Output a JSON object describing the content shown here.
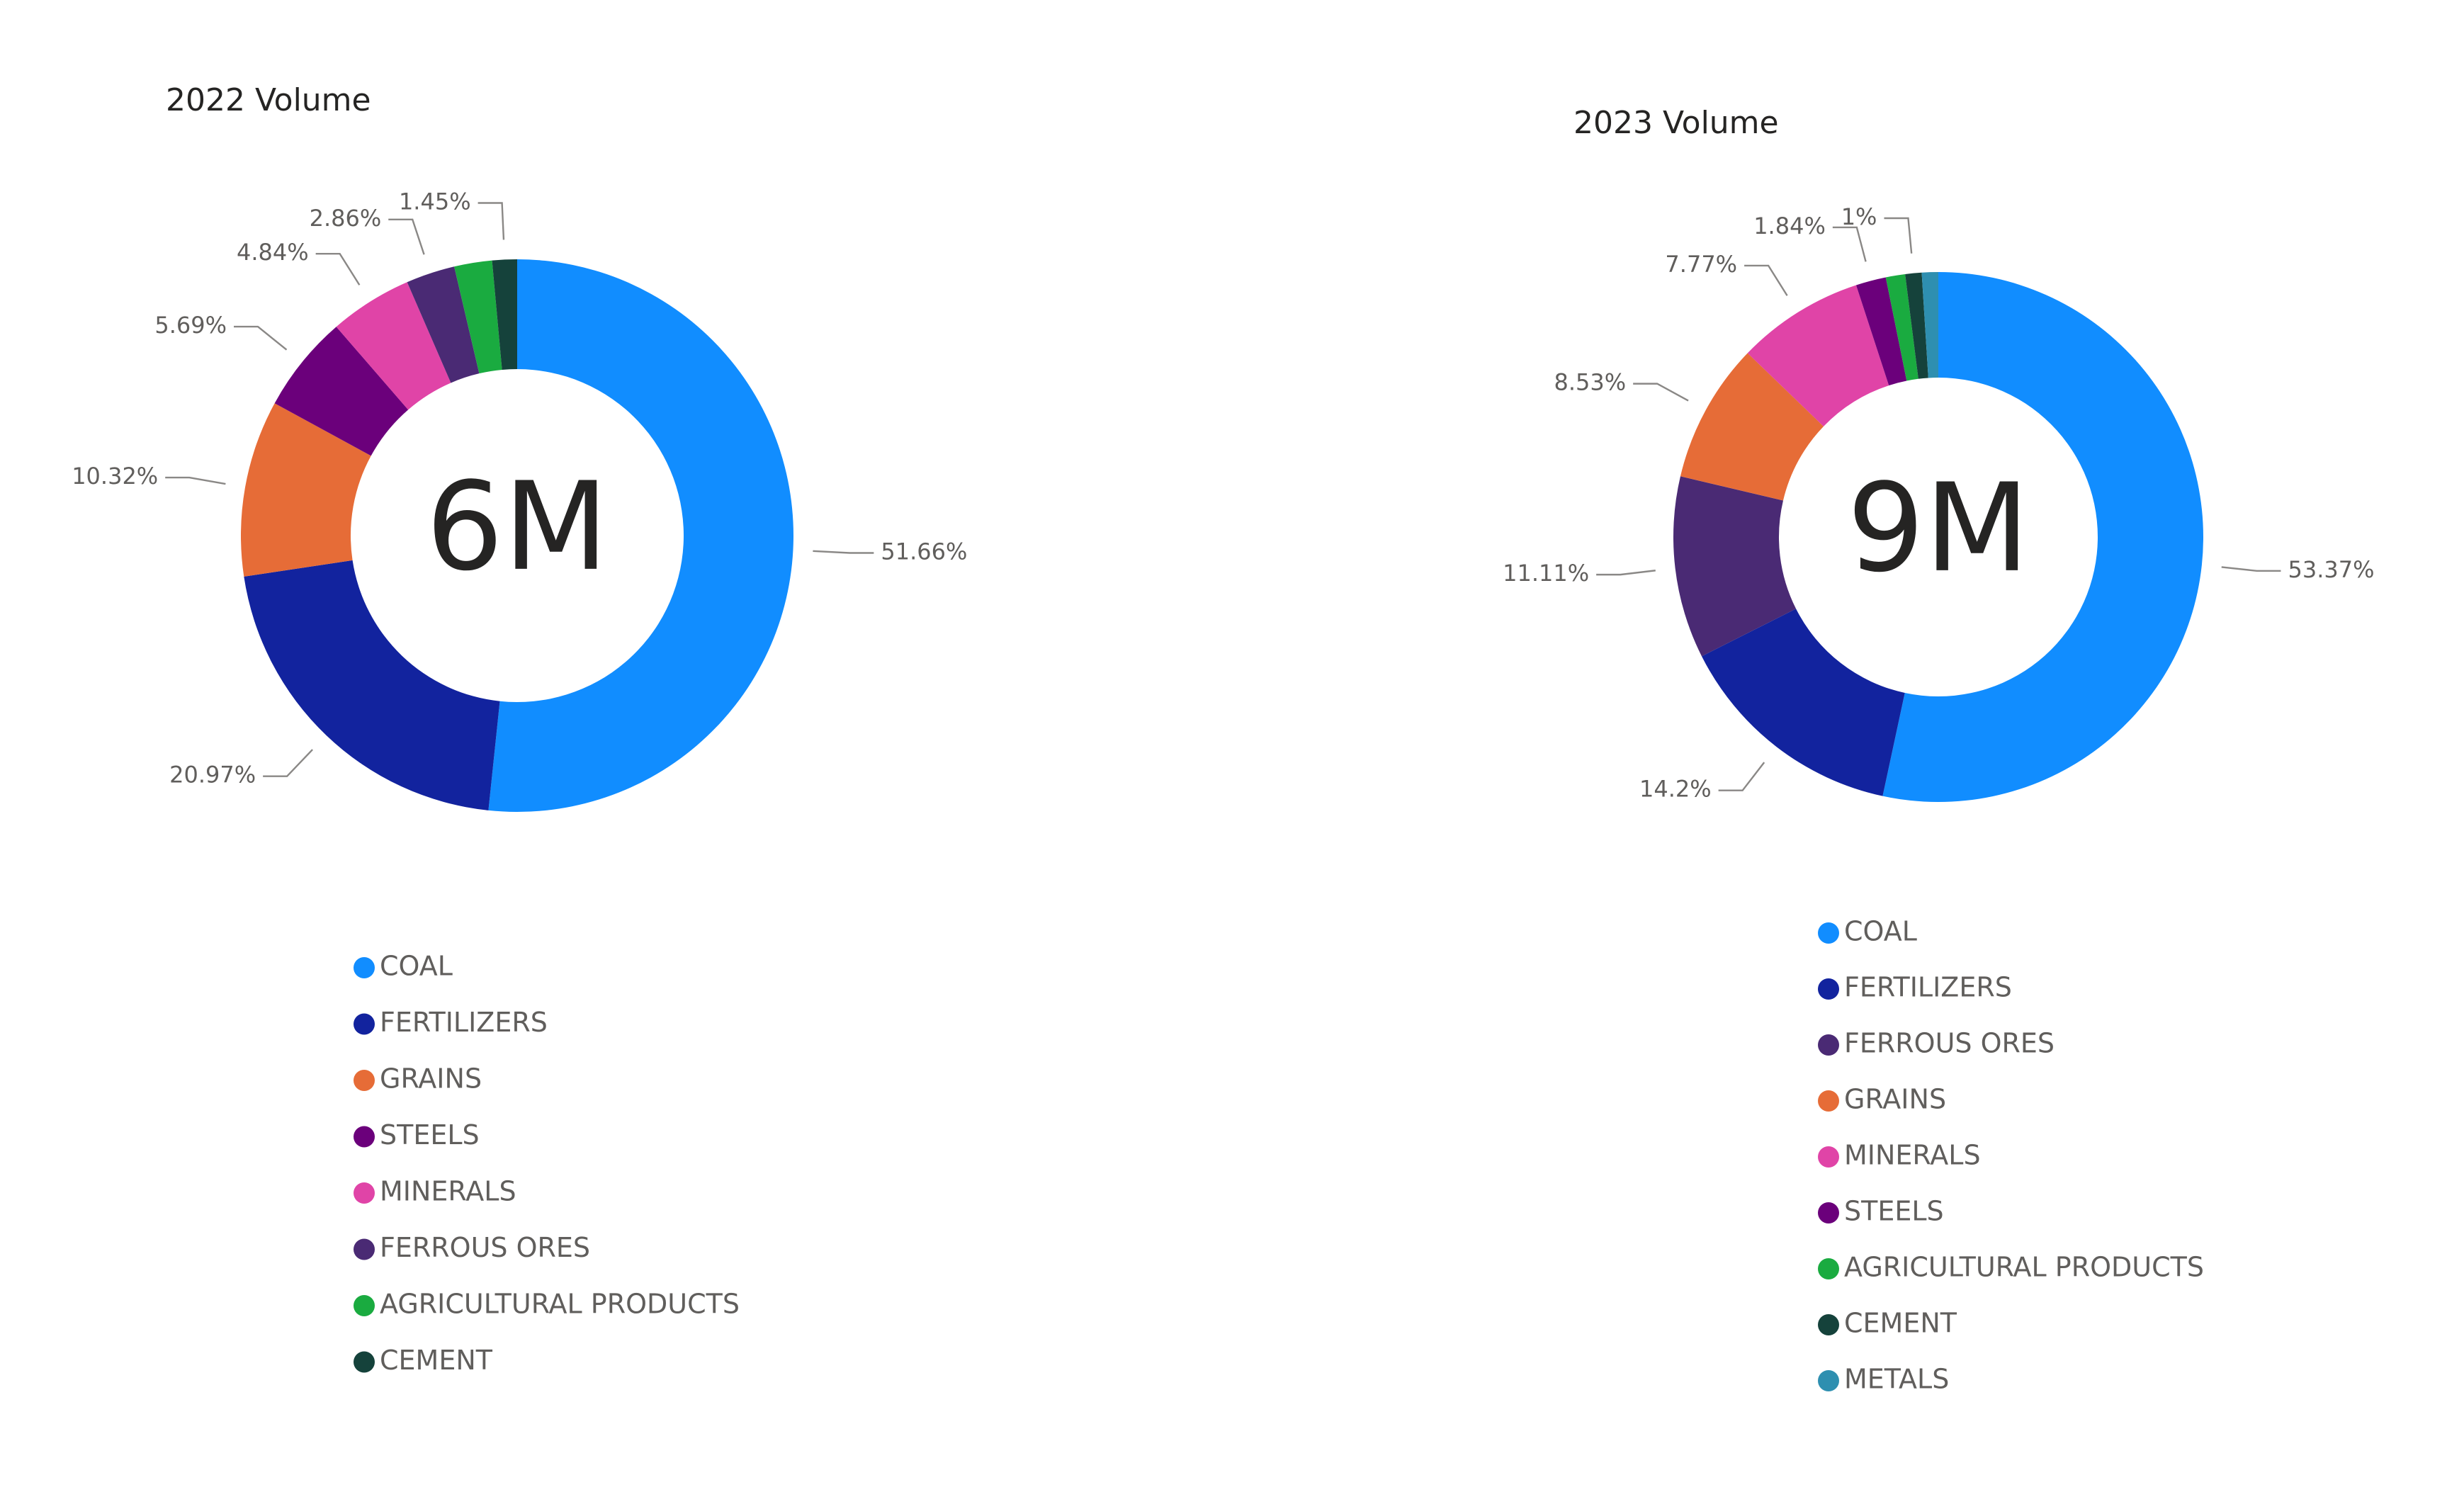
{
  "chart_data": [
    {
      "type": "donut",
      "title": "2022 Volume",
      "center_label": "6M",
      "categories": [
        "COAL",
        "FERTILIZERS",
        "GRAINS",
        "STEELS",
        "MINERALS",
        "FERROUS ORES",
        "AGRICULTURAL PRODUCTS",
        "CEMENT"
      ],
      "values": [
        51.66,
        20.97,
        10.32,
        5.69,
        4.84,
        2.86,
        2.21,
        1.45
      ],
      "data_labels": [
        "51.66%",
        "20.97%",
        "10.32%",
        "5.69%",
        "4.84%",
        "2.86%",
        "",
        "1.45%"
      ],
      "colors": [
        "#118DFF",
        "#12239E",
        "#E66C37",
        "#6B007B",
        "#E044A7",
        "#4A2A74",
        "#1AAB40",
        "#15423B"
      ],
      "legend": [
        "COAL",
        "FERTILIZERS",
        "GRAINS",
        "STEELS",
        "MINERALS",
        "FERROUS ORES",
        "AGRICULTURAL PRODUCTS",
        "CEMENT"
      ],
      "legend_colors": [
        "#118DFF",
        "#12239E",
        "#E66C37",
        "#6B007B",
        "#E044A7",
        "#4A2A74",
        "#1AAB40",
        "#15423B"
      ],
      "legend_position": "bottom"
    },
    {
      "type": "donut",
      "title": "2023 Volume",
      "center_label": "9M",
      "categories": [
        "COAL",
        "FERTILIZERS",
        "FERROUS ORES",
        "GRAINS",
        "MINERALS",
        "STEELS",
        "AGRICULTURAL PRODUCTS",
        "CEMENT",
        "METALS"
      ],
      "values": [
        53.37,
        14.2,
        11.11,
        8.53,
        7.77,
        1.84,
        1.18,
        1.0,
        1.0
      ],
      "data_labels": [
        "53.37%",
        "14.2%",
        "11.11%",
        "8.53%",
        "7.77%",
        "1.84%",
        "",
        "1%",
        ""
      ],
      "colors": [
        "#118DFF",
        "#12239E",
        "#4A2A74",
        "#E66C37",
        "#E044A7",
        "#6B007B",
        "#1AAB40",
        "#15423B",
        "#2E8FB0"
      ],
      "legend": [
        "COAL",
        "FERTILIZERS",
        "FERROUS ORES",
        "GRAINS",
        "MINERALS",
        "STEELS",
        "AGRICULTURAL PRODUCTS",
        "CEMENT",
        "METALS"
      ],
      "legend_colors": [
        "#118DFF",
        "#12239E",
        "#4A2A74",
        "#E66C37",
        "#E044A7",
        "#6B007B",
        "#1AAB40",
        "#15423B",
        "#2E8FB0"
      ],
      "legend_position": "bottom"
    }
  ]
}
